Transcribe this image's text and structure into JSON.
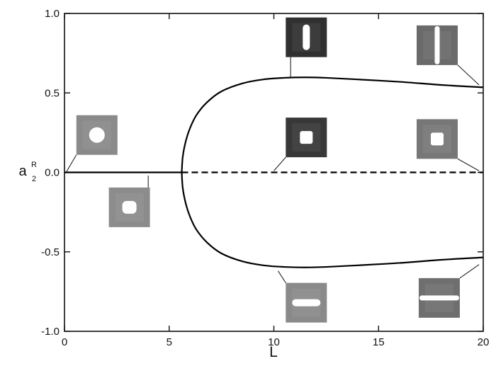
{
  "chart_data": {
    "type": "line",
    "title": "",
    "xlabel": "L",
    "ylabel": "a",
    "ylabel_sub": "2",
    "ylabel_sup": "R",
    "xlim": [
      0,
      20
    ],
    "ylim": [
      -1.0,
      1.0
    ],
    "x_ticks": [
      0,
      5,
      10,
      15,
      20
    ],
    "x_tick_labels": [
      "0",
      "5",
      "10",
      "15",
      "20"
    ],
    "y_ticks": [
      1.0,
      0.5,
      0.0,
      -0.5,
      -1.0
    ],
    "y_tick_labels": [
      "1.0",
      "0.5",
      "0.0",
      "-0.5",
      "-1.0"
    ],
    "grid": false,
    "series": [
      {
        "style": "solid",
        "x": [
          0,
          5.6
        ],
        "y": [
          0,
          0
        ]
      },
      {
        "style": "dashed",
        "x": [
          5.6,
          20
        ],
        "y": [
          0,
          0
        ]
      },
      {
        "style": "solid",
        "x": [
          5.6,
          5.65,
          5.8,
          6.0,
          6.3,
          6.8,
          7.5,
          8.5,
          9.5,
          10.5,
          11.5,
          12.5,
          14,
          16,
          18,
          20
        ],
        "y": [
          0.0,
          0.1,
          0.2,
          0.28,
          0.36,
          0.44,
          0.51,
          0.56,
          0.585,
          0.595,
          0.598,
          0.595,
          0.585,
          0.57,
          0.55,
          0.535
        ]
      },
      {
        "style": "solid",
        "x": [
          5.6,
          5.65,
          5.8,
          6.0,
          6.3,
          6.8,
          7.5,
          8.5,
          9.5,
          10.5,
          11.5,
          12.5,
          14,
          16,
          18,
          20
        ],
        "y": [
          0.0,
          -0.1,
          -0.2,
          -0.28,
          -0.36,
          -0.44,
          -0.51,
          -0.56,
          -0.585,
          -0.595,
          -0.598,
          -0.595,
          -0.585,
          -0.57,
          -0.55,
          -0.535
        ]
      }
    ],
    "insets": [
      {
        "name": "inset-circle",
        "cx": 1.55,
        "cy": 0.235,
        "shape": "circle",
        "shade": "#8a8a8a",
        "leader_to": [
          0.1,
          0.005
        ]
      },
      {
        "name": "inset-rounded-square-below",
        "cx": 3.1,
        "cy": -0.22,
        "shape": "rounded-square",
        "shade": "#8c8c8c",
        "leader_to": [
          4.0,
          -0.02
        ]
      },
      {
        "name": "inset-vertical-slot-10",
        "cx": 11.55,
        "cy": 0.85,
        "shape": "vertical-slot",
        "shade": "#303030",
        "leader_to": [
          10.8,
          0.6
        ]
      },
      {
        "name": "inset-square-10",
        "cx": 11.55,
        "cy": 0.22,
        "shape": "square",
        "shade": "#383838",
        "leader_to": [
          10.0,
          0.01
        ]
      },
      {
        "name": "inset-horizontal-slot-10",
        "cx": 11.55,
        "cy": -0.82,
        "shape": "horizontal-slot",
        "shade": "#8a8a8a",
        "leader_to": [
          10.2,
          -0.62
        ]
      },
      {
        "name": "inset-vertical-bar-18",
        "cx": 17.8,
        "cy": 0.8,
        "shape": "vertical-bar",
        "shade": "#6a6a6a",
        "leader_to": [
          19.8,
          0.55
        ]
      },
      {
        "name": "inset-square-18",
        "cx": 17.8,
        "cy": 0.21,
        "shape": "square",
        "shade": "#777777",
        "leader_to": [
          19.8,
          0.01
        ]
      },
      {
        "name": "inset-horizontal-bar-18",
        "cx": 17.9,
        "cy": -0.79,
        "shape": "horizontal-bar",
        "shade": "#6f6f6f",
        "leader_to": [
          19.8,
          -0.58
        ]
      }
    ]
  }
}
